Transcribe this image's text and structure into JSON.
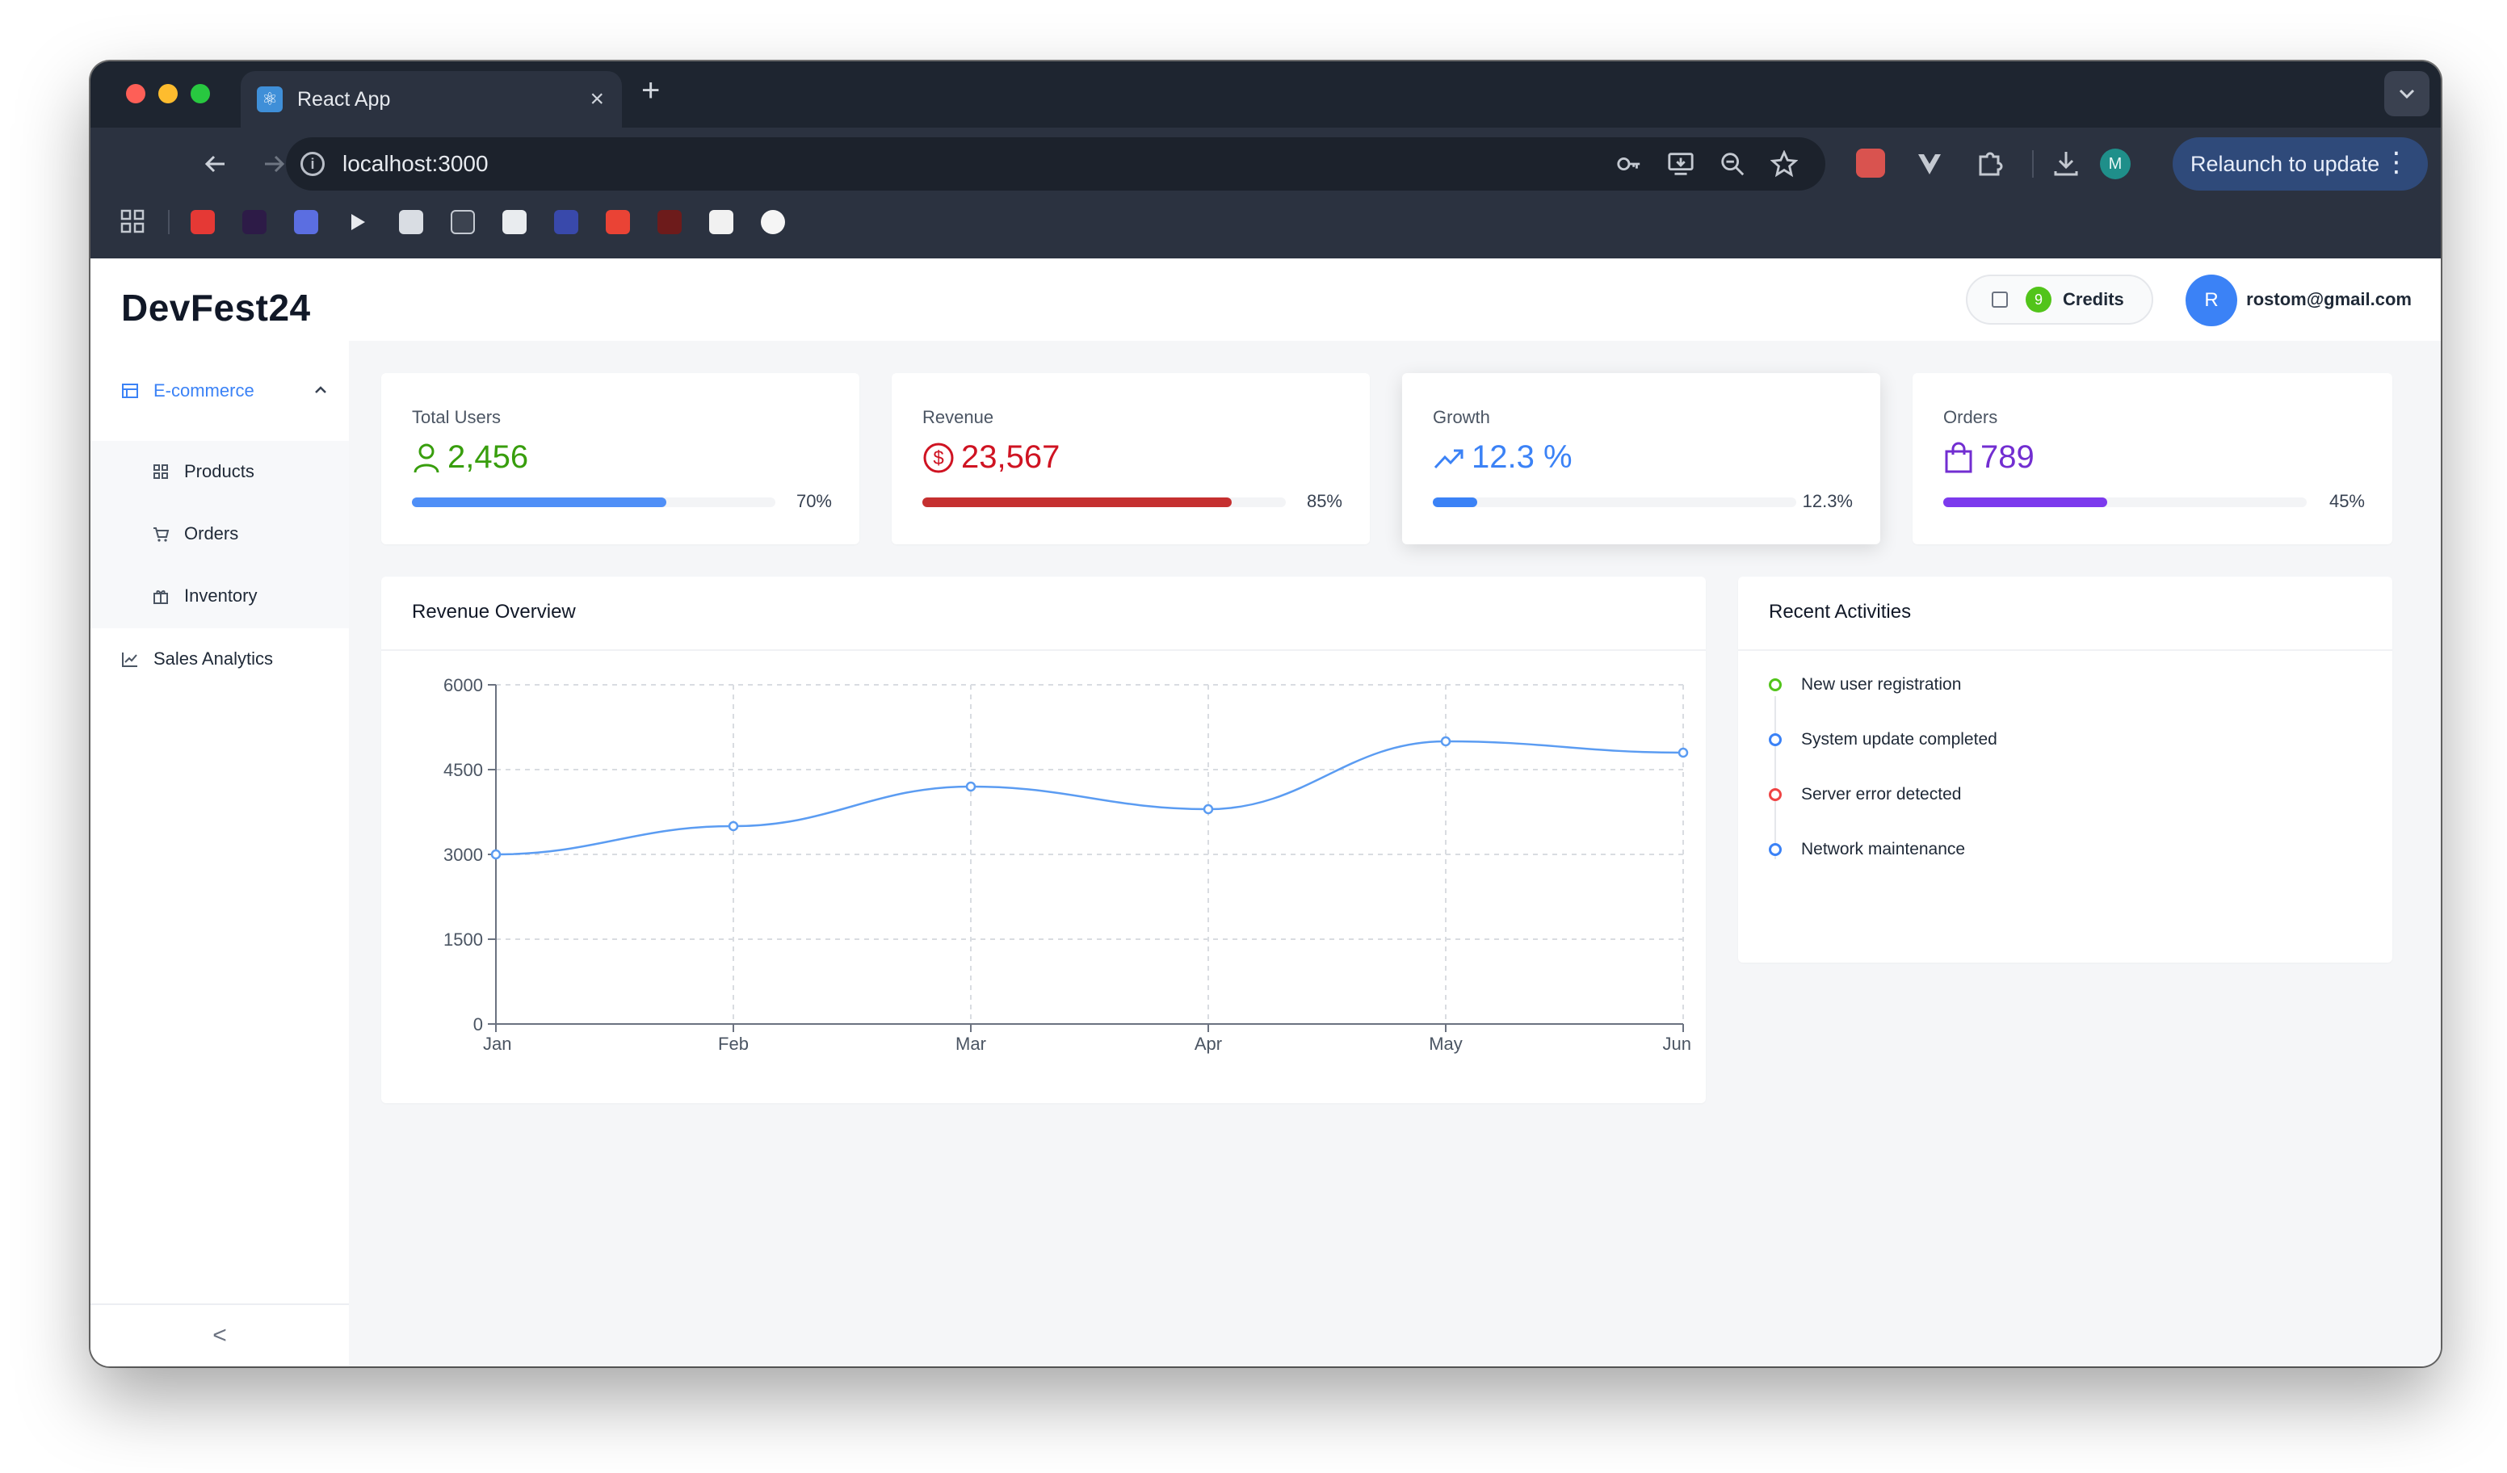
{
  "browser": {
    "tab_title": "React App",
    "tab_close": "×",
    "new_tab": "+",
    "url": "localhost:3000",
    "relaunch_label": "Relaunch to update",
    "profile_initial": "M"
  },
  "sidebar": {
    "brand": "DevFest24",
    "group_label": "E-commerce",
    "items": [
      {
        "label": "Products",
        "icon": "grid-icon"
      },
      {
        "label": "Orders",
        "icon": "cart-icon"
      },
      {
        "label": "Inventory",
        "icon": "gift-icon"
      }
    ],
    "analytics_label": "Sales Analytics",
    "collapse_glyph": "<"
  },
  "header": {
    "credits_count": "9",
    "credits_label": "Credits",
    "avatar_initial": "R",
    "email": "rostom@gmail.com"
  },
  "stats": [
    {
      "title": "Total Users",
      "value": "2,456",
      "percent_label": "70%",
      "progress": 0.7,
      "color": "#389e0d",
      "bar_color": "#4f8ff7"
    },
    {
      "title": "Revenue",
      "value": "23,567",
      "percent_label": "85%",
      "progress": 0.85,
      "color": "#cf1322",
      "bar_color": "#c53030"
    },
    {
      "title": "Growth",
      "value": "12.3 %",
      "percent_label": "12.3%",
      "progress": 0.123,
      "color": "#3b82f6",
      "bar_color": "#3b82f6"
    },
    {
      "title": "Orders",
      "value": "789",
      "percent_label": "45%",
      "progress": 0.45,
      "color": "#722ed1",
      "bar_color": "#7c3aed"
    }
  ],
  "revenue_panel": {
    "title": "Revenue Overview"
  },
  "chart_data": {
    "type": "line",
    "categories": [
      "Jan",
      "Feb",
      "Mar",
      "Apr",
      "May",
      "Jun"
    ],
    "series": [
      {
        "values": [
          3000,
          3500,
          4200,
          3800,
          5000,
          4800
        ],
        "color": "#5b9cf2"
      }
    ],
    "ylim": [
      0,
      6000
    ],
    "yticks": [
      0,
      1500,
      3000,
      4500,
      6000
    ],
    "grid": true,
    "title": "",
    "xlabel": "",
    "ylabel": ""
  },
  "activities_panel": {
    "title": "Recent Activities",
    "items": [
      {
        "text": "New user registration",
        "color": "#52c41a"
      },
      {
        "text": "System update completed",
        "color": "#3b82f6"
      },
      {
        "text": "Server error detected",
        "color": "#ef4444"
      },
      {
        "text": "Network maintenance",
        "color": "#3b82f6"
      }
    ]
  }
}
